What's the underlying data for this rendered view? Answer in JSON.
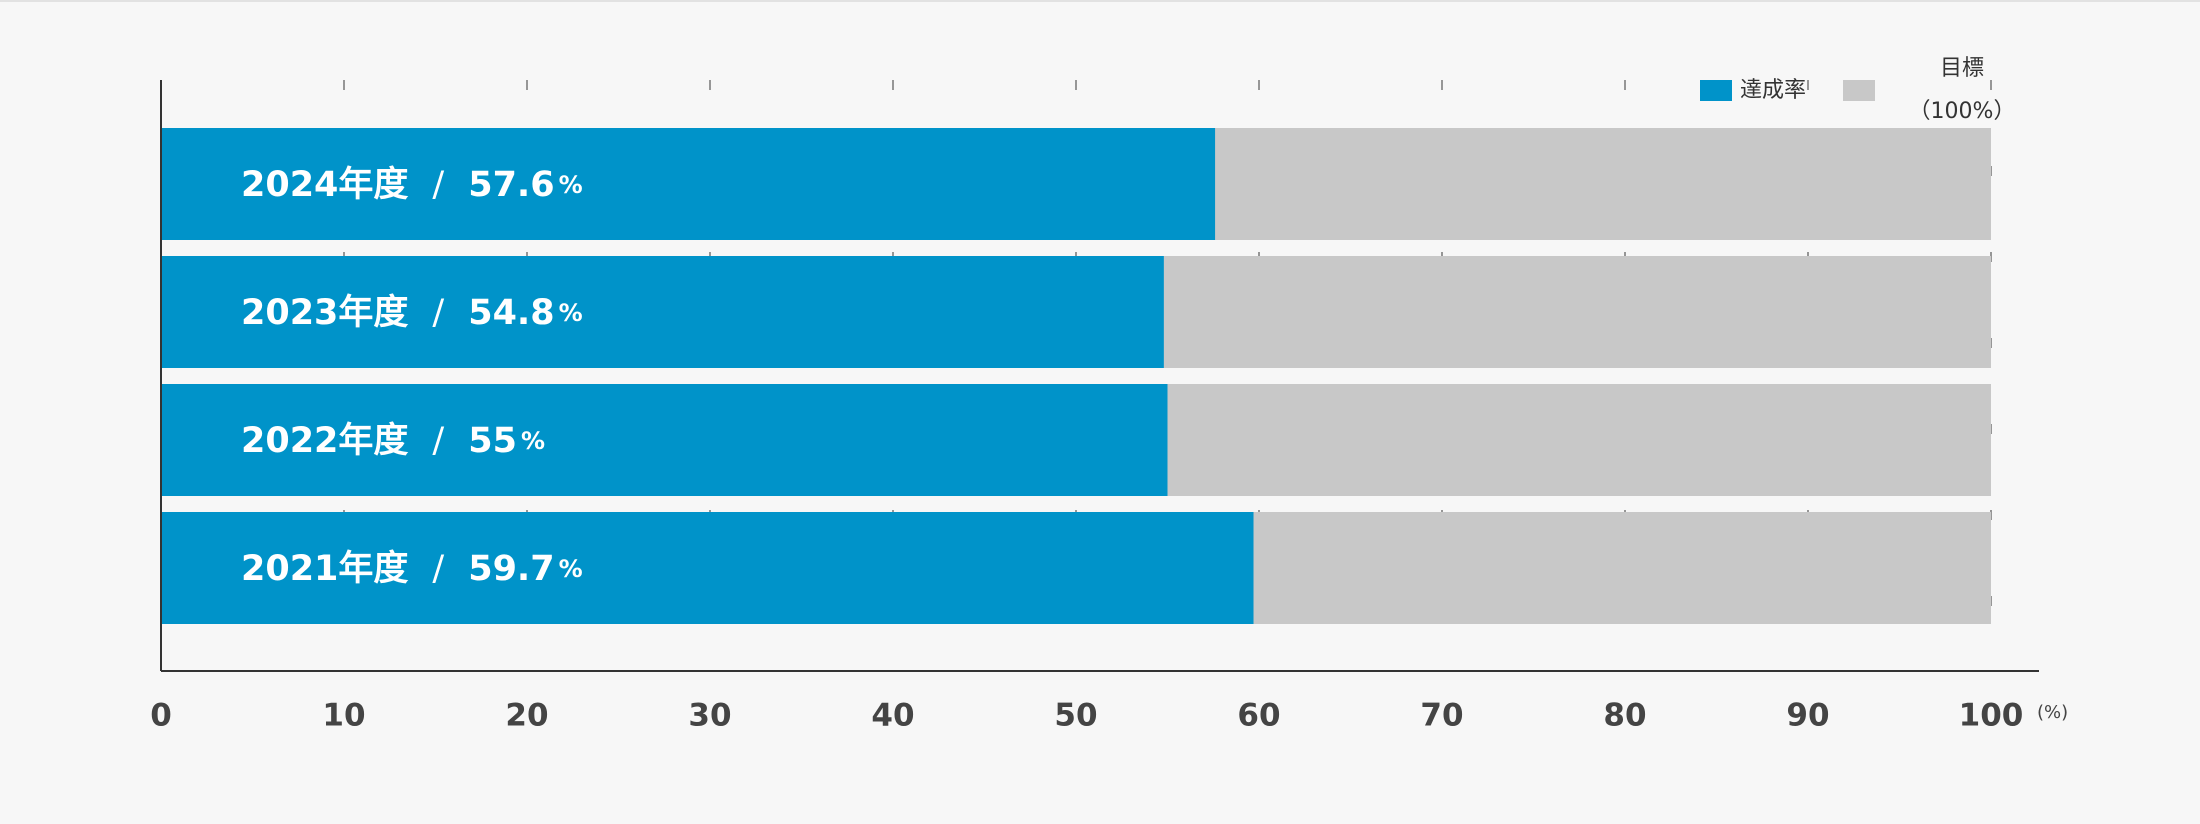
{
  "chart_data": {
    "type": "bar",
    "orientation": "horizontal",
    "categories": [
      "2024年度",
      "2023年度",
      "2022年度",
      "2021年度"
    ],
    "series": [
      {
        "name": "達成率",
        "color": "#0093c9",
        "values": [
          57.6,
          54.8,
          55,
          59.7
        ]
      },
      {
        "name": "目標",
        "name_note": "（100%）",
        "color": "#c8c8c8",
        "values": [
          100,
          100,
          100,
          100
        ]
      }
    ],
    "separator": "/",
    "value_unit": "%",
    "x_unit_label": "(%)",
    "xlim": [
      0,
      100
    ],
    "xticks": [
      0,
      10,
      20,
      30,
      40,
      50,
      60,
      70,
      80,
      90,
      100
    ],
    "grid": true,
    "legend": "top-right"
  }
}
